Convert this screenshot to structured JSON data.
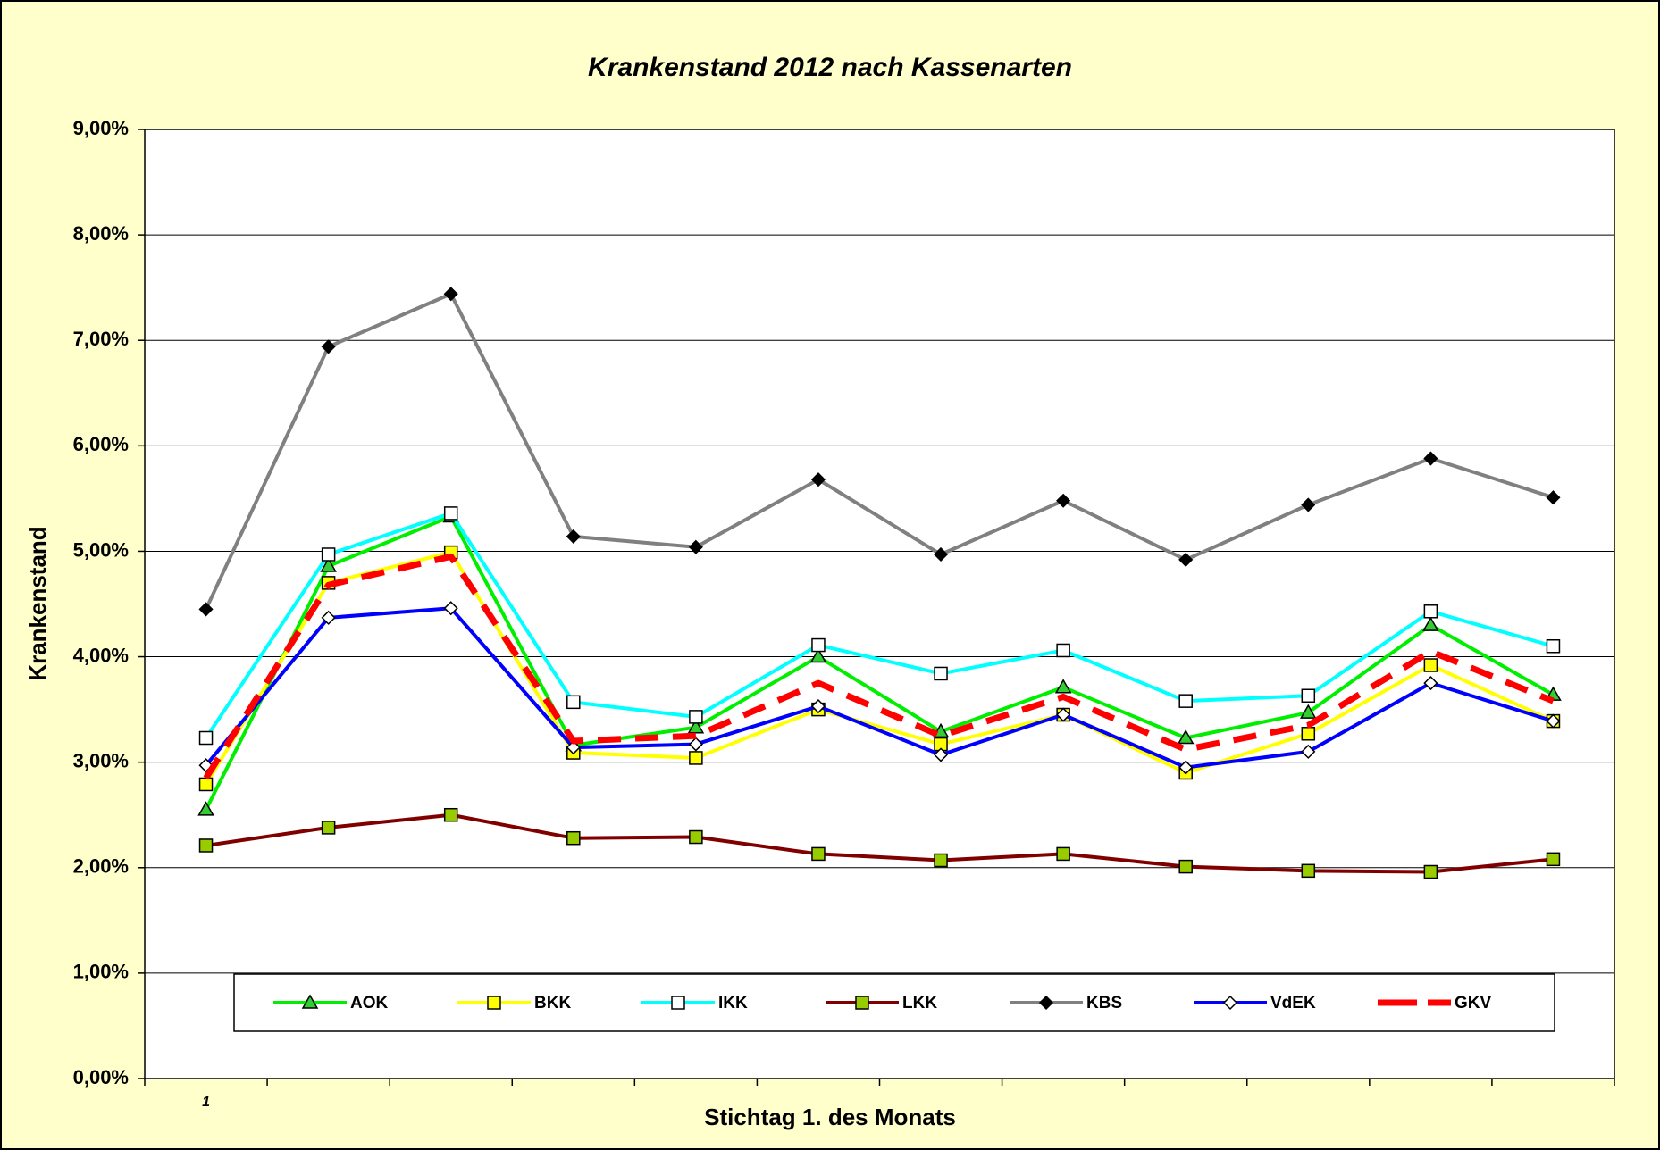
{
  "chart_data": {
    "type": "line",
    "title": "Krankenstand 2012 nach Kassenarten",
    "x_label": "Stichtag 1. des Monats",
    "y_label": "Krankenstand",
    "categories": [
      "1",
      null,
      null,
      null,
      null,
      null,
      null,
      null,
      null,
      null,
      null,
      null
    ],
    "ylim": [
      0,
      9
    ],
    "yticks": [
      {
        "value": 0,
        "label": "0,00%"
      },
      {
        "value": 1,
        "label": "1,00%"
      },
      {
        "value": 2,
        "label": "2,00%"
      },
      {
        "value": 3,
        "label": "3,00%"
      },
      {
        "value": 4,
        "label": "4,00%"
      },
      {
        "value": 5,
        "label": "5,00%"
      },
      {
        "value": 6,
        "label": "6,00%"
      },
      {
        "value": 7,
        "label": "7,00%"
      },
      {
        "value": 8,
        "label": "8,00%"
      },
      {
        "value": 9,
        "label": "9,00%"
      }
    ],
    "grid": true,
    "legend": "bottom",
    "series": [
      {
        "name": "AOK",
        "color": "#00ee00",
        "marker": "triangle",
        "marker_fill": "#33cc33",
        "values": [
          2.55,
          4.86,
          5.33,
          3.16,
          3.33,
          4.0,
          3.29,
          3.71,
          3.23,
          3.47,
          4.3,
          3.64
        ]
      },
      {
        "name": "BKK",
        "color": "#ffff00",
        "marker": "square",
        "marker_fill": "#ffff00",
        "values": [
          2.79,
          4.7,
          4.99,
          3.09,
          3.04,
          3.5,
          3.17,
          3.45,
          2.9,
          3.27,
          3.92,
          3.39
        ]
      },
      {
        "name": "IKK",
        "color": "#00ffff",
        "marker": "square",
        "marker_fill": "#ffffff",
        "values": [
          3.23,
          4.97,
          5.36,
          3.57,
          3.43,
          4.11,
          3.84,
          4.06,
          3.58,
          3.63,
          4.43,
          4.1
        ]
      },
      {
        "name": "LKK",
        "color": "#800000",
        "marker": "square",
        "marker_fill": "#99cc00",
        "values": [
          2.21,
          2.38,
          2.5,
          2.28,
          2.29,
          2.13,
          2.07,
          2.13,
          2.01,
          1.97,
          1.96,
          2.08
        ]
      },
      {
        "name": "KBS",
        "color": "#808080",
        "marker": "diamond",
        "marker_fill": "#000000",
        "values": [
          4.45,
          6.94,
          7.44,
          5.14,
          5.04,
          5.68,
          4.97,
          5.48,
          4.92,
          5.44,
          5.88,
          5.51
        ]
      },
      {
        "name": "VdEK",
        "color": "#0000ff",
        "marker": "diamond",
        "marker_fill": "#ffffff",
        "values": [
          2.97,
          4.37,
          4.46,
          3.14,
          3.17,
          3.53,
          3.07,
          3.45,
          2.95,
          3.1,
          3.75,
          3.39
        ]
      },
      {
        "name": "GKV",
        "color": "#ff0000",
        "marker": "none",
        "dashed": true,
        "values": [
          2.85,
          4.68,
          4.95,
          3.2,
          3.25,
          3.75,
          3.25,
          3.62,
          3.12,
          3.35,
          4.05,
          3.58
        ]
      }
    ]
  }
}
